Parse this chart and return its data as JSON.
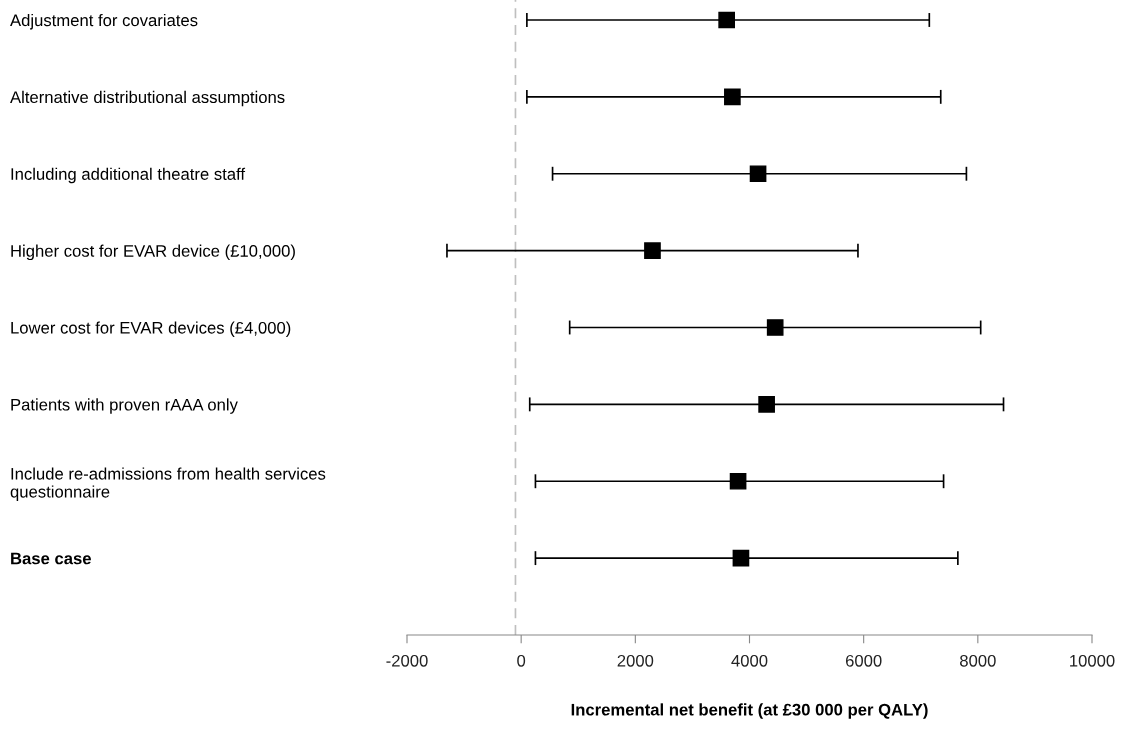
{
  "chart_data": {
    "type": "scatter",
    "xlabel": "Incremental net benefit (at £30 000 per QALY)",
    "categories": [
      "Adjustment for covariates",
      "Alternative distributional assumptions",
      "Including additional theatre staff",
      "Higher cost for EVAR device (£10,000)",
      "Lower cost for EVAR devices (£4,000)",
      "Patients with proven rAAA only",
      "Include re-admissions from health services\nquestionnaire",
      "Base case"
    ],
    "series": [
      {
        "color": "#000000",
        "values": [
          3600,
          3700,
          4150,
          2300,
          4450,
          4300,
          3800,
          3850
        ],
        "errors": [
          [
            100,
            7150
          ],
          [
            100,
            7350
          ],
          [
            550,
            7800
          ],
          [
            -1300,
            5900
          ],
          [
            850,
            8050
          ],
          [
            150,
            8450
          ],
          [
            250,
            7400
          ],
          [
            250,
            7650
          ]
        ]
      }
    ],
    "orientation": "horizontal",
    "marker": "square",
    "xlim": [
      -2000,
      10000
    ],
    "xticks": [
      -2000,
      0,
      2000,
      4000,
      6000,
      8000,
      10000
    ],
    "ref_lines": [
      {
        "axis": "x",
        "value": -100,
        "color": "#bfbfbf",
        "line_style": "dashed"
      }
    ],
    "tick_labels": "x"
  }
}
